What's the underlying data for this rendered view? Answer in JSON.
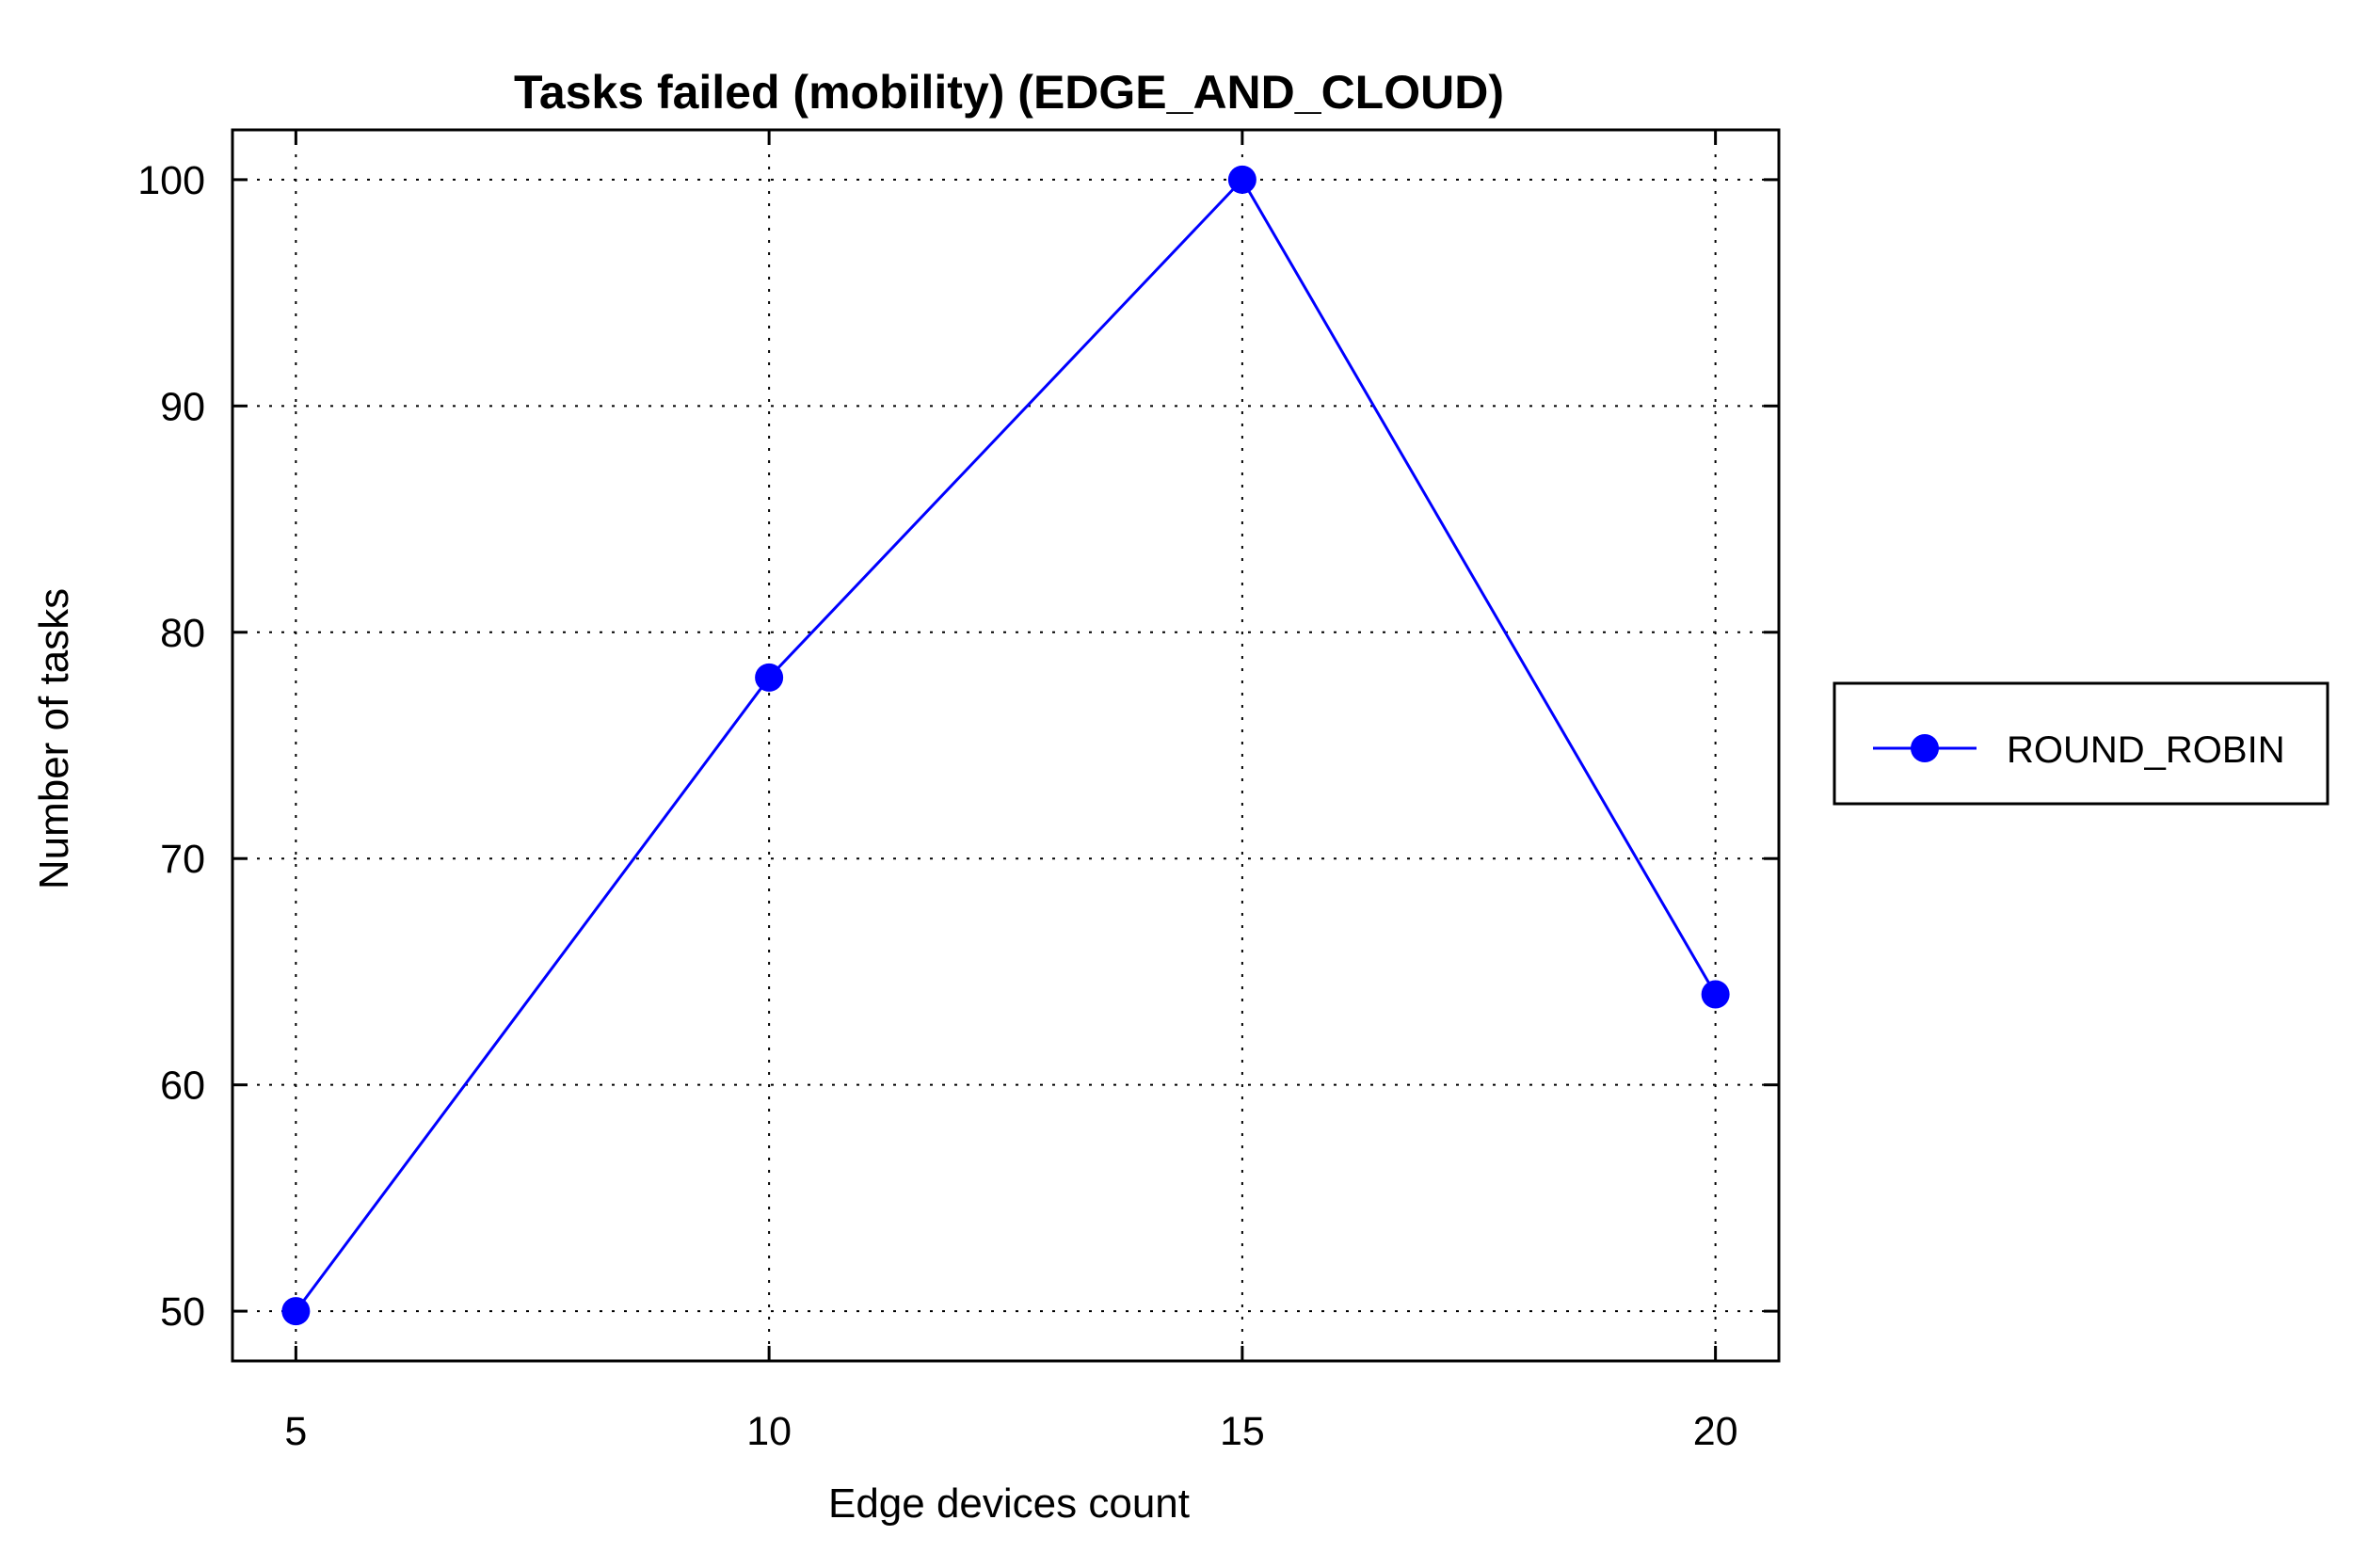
{
  "chart_data": {
    "type": "line",
    "title": "Tasks failed (mobility) (EDGE_AND_CLOUD)",
    "xlabel": "Edge devices count",
    "ylabel": "Number of tasks",
    "x": [
      5,
      10,
      15,
      20
    ],
    "xticks": [
      "5",
      "10",
      "15",
      "20"
    ],
    "yticks": [
      "50",
      "60",
      "70",
      "80",
      "90",
      "100"
    ],
    "xlim": [
      4.33,
      20.67
    ],
    "ylim": [
      47.8,
      102.2
    ],
    "grid": true,
    "legend_position": "right",
    "series": [
      {
        "name": "ROUND_ROBIN",
        "values": [
          50,
          78,
          100,
          64
        ],
        "color": "#0000ff",
        "marker": "circle"
      }
    ]
  }
}
